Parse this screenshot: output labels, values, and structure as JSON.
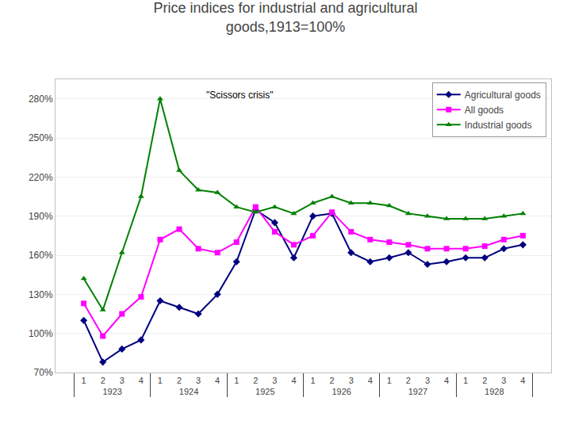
{
  "chart_data": {
    "type": "line",
    "title": "Price indices for industrial and agricultural\ngoods,1913=100%",
    "annotations": [
      "\"Scissors crisis\""
    ],
    "categories": [
      [
        "1923",
        "1"
      ],
      [
        "1923",
        "2"
      ],
      [
        "1923",
        "3"
      ],
      [
        "1923",
        "4"
      ],
      [
        "1924",
        "1"
      ],
      [
        "1924",
        "2"
      ],
      [
        "1924",
        "3"
      ],
      [
        "1924",
        "4"
      ],
      [
        "1925",
        "1"
      ],
      [
        "1925",
        "2"
      ],
      [
        "1925",
        "3"
      ],
      [
        "1925",
        "4"
      ],
      [
        "1926",
        "1"
      ],
      [
        "1926",
        "2"
      ],
      [
        "1926",
        "3"
      ],
      [
        "1926",
        "4"
      ],
      [
        "1927",
        "1"
      ],
      [
        "1927",
        "2"
      ],
      [
        "1927",
        "3"
      ],
      [
        "1927",
        "4"
      ],
      [
        "1928",
        "1"
      ],
      [
        "1928",
        "2"
      ],
      [
        "1928",
        "3"
      ],
      [
        "1928",
        "4"
      ]
    ],
    "series": [
      {
        "name": "Agricultural goods",
        "color": "#000080",
        "marker": "diamond",
        "values": [
          110,
          78,
          88,
          95,
          125,
          120,
          115,
          130,
          155,
          195,
          185,
          158,
          190,
          192,
          162,
          155,
          158,
          162,
          153,
          155,
          158,
          158,
          165,
          168
        ]
      },
      {
        "name": "All goods",
        "color": "#FF00FF",
        "marker": "square",
        "values": [
          123,
          98,
          115,
          128,
          172,
          180,
          165,
          162,
          170,
          197,
          178,
          168,
          175,
          193,
          178,
          172,
          170,
          168,
          165,
          165,
          165,
          167,
          172,
          175
        ]
      },
      {
        "name": "Industrial goods",
        "color": "#008000",
        "marker": "triangle-up",
        "values": [
          142,
          118,
          162,
          205,
          280,
          225,
          210,
          208,
          197,
          193,
          197,
          192,
          200,
          205,
          200,
          200,
          198,
          192,
          190,
          188,
          188,
          188,
          190,
          192
        ]
      }
    ],
    "ylim": [
      70,
      295
    ],
    "yticks": [
      {
        "value": 70,
        "label": "70%"
      },
      {
        "value": 100,
        "label": "100%"
      },
      {
        "value": 130,
        "label": "130%"
      },
      {
        "value": 160,
        "label": "160%"
      },
      {
        "value": 190,
        "label": "190%"
      },
      {
        "value": 220,
        "label": "220%"
      },
      {
        "value": 250,
        "label": "250%"
      },
      {
        "value": 280,
        "label": "280%"
      }
    ],
    "grid": "y",
    "legend": "upper right"
  }
}
